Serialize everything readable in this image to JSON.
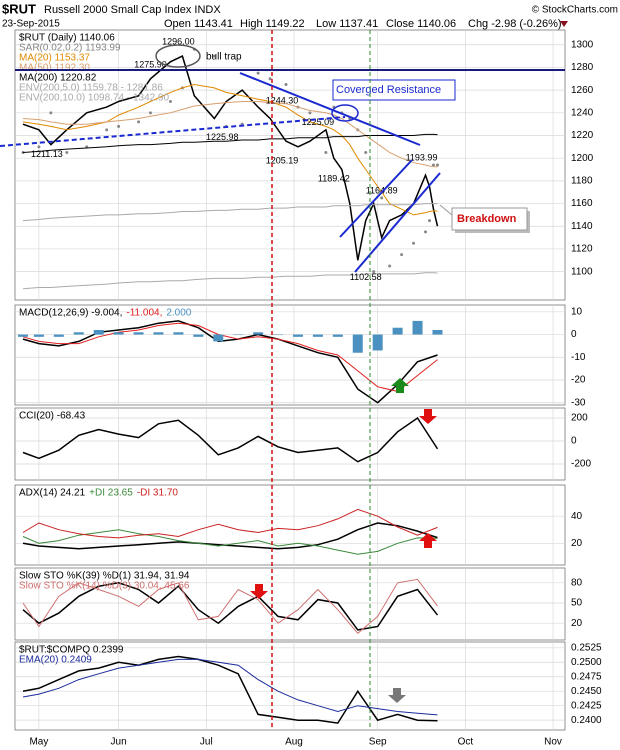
{
  "header": {
    "symbol": "$RUT",
    "name": "Russell 2000 Small Cap Index INDX",
    "date": "23-Sep-2015",
    "open": "Open 1143.41",
    "high": "High 1149.22",
    "low": "Low 1137.41",
    "close": "Close 1140.06",
    "change": "Chg -2.98 (-0.26%)",
    "copyright": "© StockCharts.com"
  },
  "annotations": [
    "bull trap",
    "Coverged Resistance",
    "Breakdown"
  ],
  "chart_data": [
    {
      "type": "line",
      "legend": "stacked",
      "xlim": [
        -6,
        132
      ],
      "ylim": [
        1075,
        1313
      ],
      "yticks": [
        1100,
        1120,
        1140,
        1160,
        1180,
        1200,
        1220,
        1240,
        1260,
        1280,
        1300
      ],
      "x": [
        -4,
        0,
        3,
        7,
        12,
        17,
        20,
        25,
        28,
        33,
        36,
        39,
        44,
        47,
        51,
        55,
        58,
        62,
        65,
        68,
        72,
        74,
        76,
        78,
        80,
        82,
        84,
        86,
        88,
        91,
        94,
        97,
        98,
        99,
        100
      ],
      "series": [
        {
          "name": "$RUT (Daily) 1140.06",
          "color": "#000000",
          "style": "line",
          "values": [
            1230,
            1225,
            1212,
            1225,
            1240,
            1245,
            1250,
            1255,
            1270,
            1285,
            1290,
            1255,
            1235,
            1250,
            1260,
            1245,
            1235,
            1215,
            1210,
            1215,
            1225,
            1200,
            1190,
            1160,
            1110,
            1145,
            1160,
            1130,
            1145,
            1150,
            1160,
            1185,
            1175,
            1155,
            1140.06
          ]
        },
        {
          "name": "SAR(0.02,0.2) 1193.99",
          "color": "#888888",
          "style": "dots",
          "values": [
            1205,
            1210,
            1240,
            1205,
            1210,
            1225,
            1228,
            1232,
            1240,
            1250,
            1262,
            1296,
            1290,
            1228,
            1230,
            1275,
            1270,
            1265,
            1245,
            1240,
            1205,
            1245,
            1240,
            1235,
            1225,
            1205,
            1100,
            1165,
            1105,
            1115,
            1125,
            1135,
            1145,
            1193.99,
            1193.99
          ]
        },
        {
          "name": "MA(20) 1153.37",
          "color": "#e08a00",
          "style": "line",
          "values": [
            1232,
            1230,
            1228,
            1225,
            1228,
            1232,
            1238,
            1245,
            1250,
            1258,
            1262,
            1265,
            1262,
            1258,
            1255,
            1252,
            1250,
            1245,
            1238,
            1232,
            1228,
            1225,
            1220,
            1212,
            1200,
            1190,
            1180,
            1170,
            1160,
            1155,
            1150,
            1152,
            1153,
            1153.5,
            1153.37
          ]
        },
        {
          "name": "MA(50) 1192.30",
          "color": "#d8a070",
          "style": "line",
          "values": [
            1235,
            1234,
            1232,
            1230,
            1230,
            1232,
            1233,
            1235,
            1237,
            1240,
            1243,
            1246,
            1248,
            1249,
            1250,
            1250,
            1249,
            1248,
            1245,
            1242,
            1240,
            1238,
            1235,
            1230,
            1225,
            1220,
            1215,
            1210,
            1205,
            1200,
            1196,
            1194,
            1193,
            1192.6,
            1192.3
          ]
        },
        {
          "name": "MA(200) 1220.82",
          "color": "#000000",
          "style": "line",
          "values": [
            1205,
            1206,
            1207,
            1208,
            1209,
            1210,
            1211,
            1212,
            1212,
            1213,
            1214,
            1214,
            1215,
            1215,
            1216,
            1216,
            1217,
            1217,
            1218,
            1218,
            1218,
            1219,
            1219,
            1219,
            1219,
            1220,
            1220,
            1220,
            1220,
            1220,
            1220,
            1221,
            1221,
            1221,
            1220.82
          ]
        },
        {
          "name": "ENV(200,5.0) 1159.78 - 1281.86",
          "color": "#aaaaaa",
          "style": "line",
          "values": [
            1145,
            1146,
            1147,
            1148,
            1149,
            1150,
            1150,
            1151,
            1151,
            1152,
            1153,
            1153,
            1154,
            1154,
            1155,
            1155,
            1156,
            1156,
            1157,
            1157,
            1157,
            1158,
            1158,
            1158,
            1158,
            1159,
            1159,
            1159,
            1159,
            1159,
            1159,
            1160,
            1160,
            1160,
            1159.78
          ]
        },
        {
          "name": "ENV(200,10.0) 1098.74 - 1342.90",
          "color": "#aaaaaa",
          "style": "line",
          "values": [
            1085,
            1086,
            1086,
            1087,
            1088,
            1089,
            1090,
            1091,
            1091,
            1092,
            1092,
            1093,
            1094,
            1094,
            1094,
            1095,
            1095,
            1096,
            1096,
            1096,
            1097,
            1097,
            1097,
            1097,
            1097,
            1098,
            1098,
            1098,
            1098,
            1098,
            1098,
            1099,
            1099,
            1099,
            1098.74
          ]
        }
      ],
      "price_labels": [
        {
          "x": 35,
          "value": 1296,
          "label": "1296.00"
        },
        {
          "x": 28,
          "value": 1275.9,
          "label": "1275.90"
        },
        {
          "x": 61,
          "value": 1244.3,
          "label": "1244.30"
        },
        {
          "x": 70,
          "value": 1225.09,
          "label": "1225.09"
        },
        {
          "x": 46,
          "value": 1225.98,
          "label": "1225.98"
        },
        {
          "x": 2,
          "value": 1211.13,
          "label": "1211.13"
        },
        {
          "x": 61,
          "value": 1205.19,
          "label": "1205.19"
        },
        {
          "x": 74,
          "value": 1189.42,
          "label": "1189.42"
        },
        {
          "x": 86,
          "value": 1164.89,
          "label": "1164.89"
        },
        {
          "x": 96,
          "value": 1193.99,
          "label": "1193.99"
        },
        {
          "x": 82,
          "value": 1102.58,
          "label": "1102.58"
        }
      ]
    },
    {
      "type": "line",
      "legend": "inline",
      "xlim": [
        -6,
        132
      ],
      "ylim": [
        -31,
        13
      ],
      "yticks": [
        10,
        0,
        -10,
        -20,
        -30
      ],
      "x": [
        -4,
        0,
        5,
        10,
        15,
        20,
        25,
        30,
        35,
        40,
        45,
        50,
        55,
        60,
        65,
        70,
        75,
        80,
        85,
        90,
        95,
        100
      ],
      "series": [
        {
          "name": "MACD(12,26,9) -9.004,",
          "color": "#000000",
          "style": "line",
          "values": [
            -2,
            -4,
            -5,
            -3,
            1,
            2,
            3,
            5,
            6,
            3,
            -3,
            -2,
            0,
            -2,
            -5,
            -8,
            -10,
            -24,
            -30,
            -22,
            -12,
            -9.004
          ]
        },
        {
          "name": "-11.004,",
          "color": "#e02020",
          "style": "line",
          "values": [
            -1,
            -3,
            -4,
            -4,
            -1,
            1,
            2,
            4,
            5,
            4,
            0,
            -2,
            -1,
            -2,
            -4,
            -7,
            -9,
            -16,
            -23,
            -25,
            -18,
            -11.004
          ]
        },
        {
          "name": "2.000",
          "color": "#4a90c0",
          "style": "bar",
          "values": [
            -1,
            -1,
            -1,
            1,
            2,
            1,
            1,
            1,
            1,
            -1,
            -3,
            0,
            1,
            0,
            -1,
            -1,
            -1,
            -8,
            -7,
            3,
            6,
            2
          ]
        }
      ]
    },
    {
      "type": "line",
      "legend": "inline",
      "xlim": [
        -6,
        132
      ],
      "ylim": [
        -339,
        287
      ],
      "yticks": [
        200,
        0,
        -200
      ],
      "x": [
        -4,
        0,
        5,
        10,
        15,
        20,
        25,
        30,
        35,
        40,
        45,
        50,
        55,
        60,
        65,
        70,
        75,
        80,
        85,
        90,
        95,
        100
      ],
      "series": [
        {
          "name": "CCI(20) -68.43",
          "color": "#000000",
          "style": "line",
          "values": [
            -100,
            -150,
            -80,
            50,
            100,
            60,
            30,
            150,
            180,
            50,
            -120,
            -60,
            40,
            -50,
            -100,
            -80,
            -60,
            -180,
            -100,
            80,
            200,
            -68.43
          ]
        }
      ]
    },
    {
      "type": "line",
      "legend": "inline",
      "xlim": [
        -6,
        132
      ],
      "ylim": [
        4,
        63
      ],
      "yticks": [
        40,
        20
      ],
      "x": [
        -4,
        0,
        5,
        10,
        15,
        20,
        25,
        30,
        35,
        40,
        45,
        50,
        55,
        60,
        65,
        70,
        75,
        80,
        85,
        90,
        95,
        100
      ],
      "series": [
        {
          "name": "ADX(14) 24.21",
          "color": "#000000",
          "style": "line",
          "values": [
            20,
            18,
            17,
            16,
            17,
            18,
            19,
            20,
            21,
            20,
            19,
            18,
            17,
            16,
            17,
            19,
            23,
            30,
            35,
            33,
            29,
            24.21
          ]
        },
        {
          "name": "+DI 23.65",
          "color": "#3a8a3a",
          "style": "line",
          "values": [
            25,
            20,
            22,
            26,
            28,
            30,
            27,
            25,
            22,
            20,
            18,
            20,
            22,
            18,
            20,
            18,
            15,
            12,
            14,
            20,
            24,
            23.65
          ]
        },
        {
          "name": "-DI 31.70",
          "color": "#cc2222",
          "style": "line",
          "values": [
            28,
            35,
            30,
            27,
            25,
            24,
            26,
            27,
            25,
            30,
            34,
            30,
            28,
            31,
            30,
            33,
            38,
            45,
            40,
            32,
            26,
            31.7
          ]
        }
      ]
    },
    {
      "type": "line",
      "legend": "stacked",
      "xlim": [
        -6,
        132
      ],
      "ylim": [
        -5,
        102
      ],
      "yticks": [
        80,
        50,
        20
      ],
      "x": [
        -4,
        0,
        5,
        10,
        15,
        20,
        25,
        30,
        35,
        40,
        45,
        50,
        55,
        60,
        65,
        70,
        75,
        80,
        85,
        90,
        95,
        100
      ],
      "series": [
        {
          "name": "Slow STO %K(39) %D(1) 31.94, 31.94",
          "color": "#000000",
          "style": "line",
          "values": [
            40,
            20,
            35,
            60,
            75,
            80,
            70,
            50,
            75,
            40,
            20,
            45,
            60,
            30,
            25,
            55,
            50,
            10,
            15,
            60,
            70,
            31.94
          ]
        },
        {
          "name": "Slow STO %K(14) %D(3) 30.04, 45.66",
          "color": "#d07070",
          "style": "line",
          "values": [
            50,
            15,
            60,
            80,
            70,
            60,
            45,
            70,
            80,
            25,
            30,
            70,
            55,
            20,
            40,
            70,
            40,
            5,
            30,
            80,
            85,
            45.66
          ]
        }
      ]
    },
    {
      "type": "line",
      "legend": "stacked",
      "xlim": [
        -6,
        132
      ],
      "ylim": [
        0.2383,
        0.2535
      ],
      "yticks": [
        0.2525,
        {
          "value": 0.25,
          "label": "0.2500"
        },
        0.2475,
        {
          "value": 0.245,
          "label": "0.2450"
        },
        0.2425,
        {
          "value": 0.24,
          "label": "0.2400"
        }
      ],
      "xticks": [
        {
          "value": 0,
          "label": "May"
        },
        {
          "value": 20,
          "label": "Jun"
        },
        {
          "value": 42,
          "label": "Jul"
        },
        {
          "value": 64,
          "label": "Aug"
        },
        {
          "value": 85,
          "label": "Sep"
        },
        {
          "value": 107,
          "label": "Oct"
        },
        {
          "value": 129,
          "label": "Nov"
        }
      ],
      "x": [
        -4,
        0,
        5,
        10,
        15,
        20,
        25,
        30,
        35,
        40,
        45,
        50,
        55,
        60,
        65,
        70,
        75,
        80,
        85,
        90,
        95,
        100
      ],
      "series": [
        {
          "name": "$RUT:$COMPQ 0.2399",
          "color": "#000000",
          "style": "line",
          "values": [
            0.245,
            0.2455,
            0.247,
            0.2485,
            0.249,
            0.25,
            0.2495,
            0.2505,
            0.251,
            0.2505,
            0.2495,
            0.248,
            0.241,
            0.2405,
            0.24,
            0.24,
            0.2395,
            0.245,
            0.24,
            0.241,
            0.24,
            0.2399
          ]
        },
        {
          "name": "EMA(20) 0.2409",
          "color": "#1a2a9a",
          "style": "line",
          "values": [
            0.244,
            0.2445,
            0.2455,
            0.247,
            0.248,
            0.249,
            0.2495,
            0.25,
            0.2505,
            0.2505,
            0.25,
            0.2495,
            0.247,
            0.245,
            0.2435,
            0.2425,
            0.2415,
            0.2425,
            0.242,
            0.2415,
            0.2412,
            0.2409
          ]
        }
      ]
    }
  ]
}
